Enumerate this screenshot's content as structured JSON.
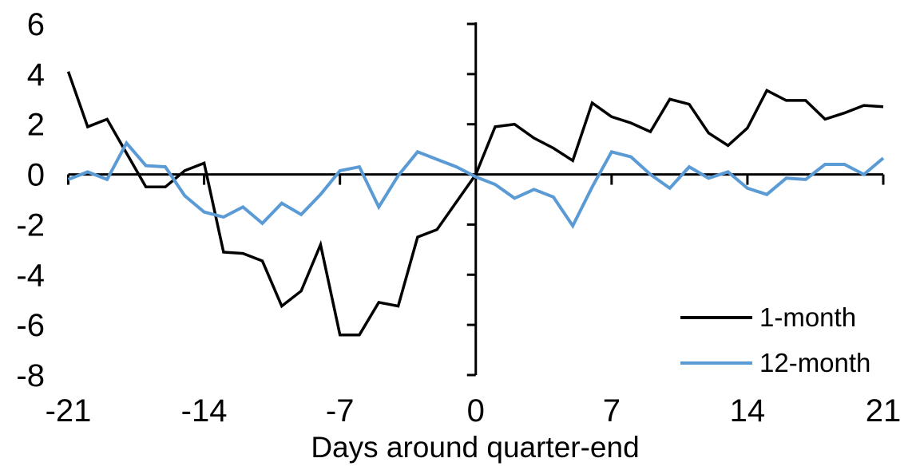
{
  "chart_data": {
    "type": "line",
    "xlabel": "Days around quarter-end",
    "ylabel": "",
    "xlim": [
      -21,
      21
    ],
    "ylim": [
      -8,
      6
    ],
    "x_ticks": [
      -21,
      -14,
      -7,
      0,
      7,
      14,
      21
    ],
    "y_ticks": [
      6,
      4,
      2,
      0,
      -2,
      -4,
      -6,
      -8
    ],
    "grid": false,
    "legend_position": "lower right",
    "axis_cross": {
      "x_axis_at_y": 0,
      "y_axis_at_x": 0
    },
    "x": [
      -21,
      -20,
      -19,
      -18,
      -17,
      -16,
      -15,
      -14,
      -13,
      -12,
      -11,
      -10,
      -9,
      -8,
      -7,
      -6,
      -5,
      -4,
      -3,
      -2,
      -1,
      0,
      1,
      2,
      3,
      4,
      5,
      6,
      7,
      8,
      9,
      10,
      11,
      12,
      13,
      14,
      15,
      16,
      17,
      18,
      19,
      20,
      21
    ],
    "series": [
      {
        "name": "1-month",
        "color": "#000000",
        "stroke_width": 3.5,
        "values": [
          4.1,
          1.9,
          2.2,
          0.85,
          -0.5,
          -0.5,
          0.15,
          0.45,
          -3.1,
          -3.15,
          -3.45,
          -5.25,
          -4.65,
          -2.8,
          -6.4,
          -6.4,
          -5.1,
          -5.25,
          -2.5,
          -2.2,
          -1.1,
          0.0,
          1.9,
          2.0,
          1.45,
          1.05,
          0.55,
          2.85,
          2.3,
          2.05,
          1.7,
          3.0,
          2.8,
          1.65,
          1.15,
          1.85,
          3.35,
          2.95,
          2.95,
          2.2,
          2.45,
          2.75,
          2.7
        ]
      },
      {
        "name": "12-month",
        "color": "#5B9BD5",
        "stroke_width": 4,
        "values": [
          -0.2,
          0.1,
          -0.2,
          1.25,
          0.35,
          0.3,
          -0.85,
          -1.5,
          -1.7,
          -1.3,
          -1.95,
          -1.15,
          -1.6,
          -0.8,
          0.15,
          0.3,
          -1.3,
          -0.05,
          0.9,
          0.6,
          0.3,
          -0.1,
          -0.4,
          -0.95,
          -0.6,
          -0.9,
          -2.05,
          -0.5,
          0.9,
          0.7,
          0.0,
          -0.55,
          0.3,
          -0.15,
          0.1,
          -0.55,
          -0.8,
          -0.15,
          -0.2,
          0.4,
          0.4,
          0.0,
          0.65
        ]
      }
    ]
  }
}
